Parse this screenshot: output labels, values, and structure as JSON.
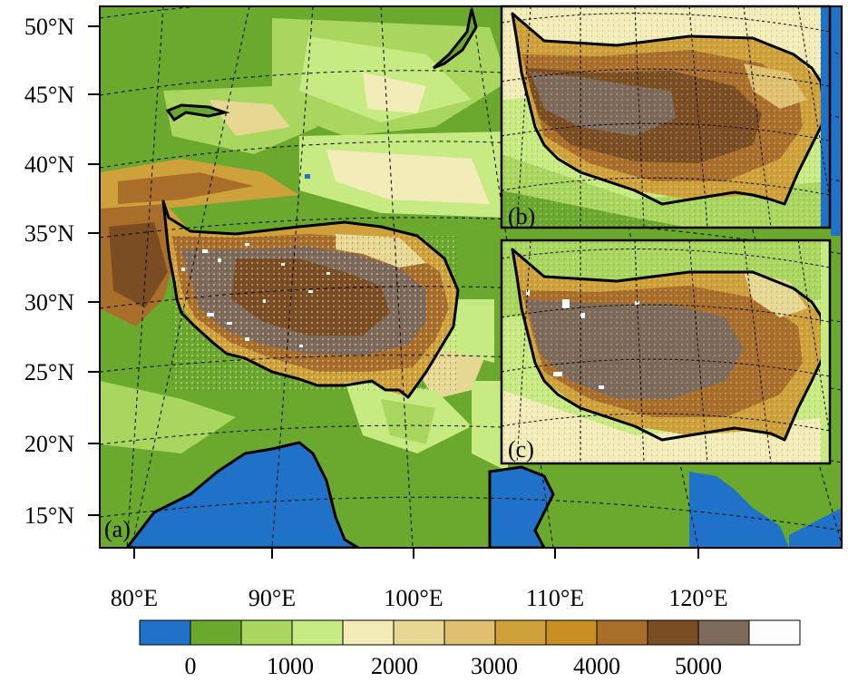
{
  "colors": {
    "ocean": "#1f72c8",
    "lowland": "#6aa82e",
    "plain": "#a9d65e",
    "hill": "#c7ea83",
    "pale": "#f2ecb8",
    "sand": "#e6d792",
    "tan": "#dfc070",
    "ochre": "#cfa13a",
    "gold": "#c98f22",
    "brown": "#a86e2a",
    "dark_brown": "#7a4e22",
    "gray_brown": "#7d6a5a",
    "snow": "#fdfdfd",
    "boundary": "#000000"
  },
  "icons": {
    "plateau_outline": "tibetan-plateau-boundary",
    "graticule": "dashed-graticule"
  },
  "panels": {
    "main": {
      "label": "(a)"
    },
    "inset_b": {
      "label": "(b)"
    },
    "inset_c": {
      "label": "(c)"
    }
  },
  "lat_labels": [
    "50°N",
    "45°N",
    "40°N",
    "35°N",
    "30°N",
    "25°N",
    "20°N",
    "15°N"
  ],
  "lon_labels": [
    "80°E",
    "90°E",
    "100°E",
    "110°E",
    "120°E"
  ],
  "legend": {
    "ticks": [
      "0",
      "1000",
      "2000",
      "3000",
      "4000",
      "5000"
    ],
    "bins": [
      "ocean",
      "lowland",
      "plain",
      "hill",
      "pale",
      "sand",
      "tan",
      "ochre",
      "gold",
      "brown",
      "dark_brown",
      "gray_brown",
      "snow"
    ]
  }
}
